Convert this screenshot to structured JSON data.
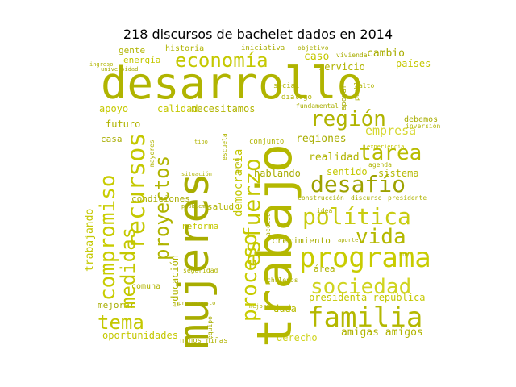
{
  "title": "218 discursos de bachelet dados en 2014",
  "colors": {
    "dark": "#a8ad00",
    "mid": "#c4c800",
    "light": "#dde04a",
    "pale": "#e8ea9a"
  },
  "words": {
    "desarrollo": "desarrollo",
    "trabajo": "trabajo",
    "mujeres": "mujeres",
    "economia": "economía",
    "region": "región",
    "tarea": "tarea",
    "desafio": "desafío",
    "politica": "política",
    "programa": "programa",
    "sociedad": "sociedad",
    "familia": "familia",
    "vida": "vida",
    "recursos": "recursos",
    "compromiso": "compromiso",
    "medidas": "medidas",
    "tema": "tema",
    "proyectos": "proyectos",
    "esfuerzo": "esfuerzo",
    "proceso": "proceso",
    "empresa": "empresa",
    "regiones": "regiones",
    "realidad": "realidad",
    "sentido": "sentido",
    "hablando": "hablando",
    "sistema": "sistema",
    "amigas_amigos": "amigas amigos",
    "presidenta_republica": "presidenta república",
    "oportunidades": "oportunidades",
    "derecho": "derecho",
    "duda": "duda",
    "crecimiento": "crecimiento",
    "educacion": "educación",
    "comuna": "comuna",
    "trabajando": "trabajando",
    "mejorar": "mejorar",
    "calidad": "calidad",
    "necesitamos": "necesitamos",
    "apoyo": "apoyo",
    "futuro": "futuro",
    "casa": "casa",
    "cambio": "cambio",
    "paises": "países",
    "caso": "caso",
    "servicio": "servicio",
    "gente": "gente",
    "energia": "energía",
    "historia": "historia",
    "iniciativa": "iniciativa",
    "social": "social",
    "dialogo": "diálogo",
    "democracia": "democracia",
    "debemos": "debemos",
    "reforma": "reforma",
    "salud": "salud",
    "condiciones": "condiciones",
    "area": "área",
    "ninos_ninas": "niños niñas",
    "construccion": "construcción",
    "discurso": "discurso",
    "presidente": "presidente",
    "conjunto": "conjunto",
    "objetivo": "objetivo",
    "fundamental": "fundamental",
    "mayores": "mayores",
    "inversion": "inversión",
    "agenda": "agenda",
    "pueblo": "pueblo",
    "chilenos": "chilenos",
    "seguridad": "seguridad",
    "idea": "idea",
    "plan": "plan",
    "equipo": "equipo",
    "vivienda": "vivienda",
    "apoyar": "apoyar",
    "alto": "alto",
    "aporte": "aporte",
    "presupuesto": "presupuesto",
    "mejoro": "mejoro",
    "acceso": "acceso",
    "escuela": "escuela",
    "situacion": "situación",
    "tipo": "tipo",
    "problema": "problema",
    "experiencia": "experiencia",
    "universidad": "universidad",
    "ingreso": "ingreso",
    "hoy": "hoy"
  }
}
